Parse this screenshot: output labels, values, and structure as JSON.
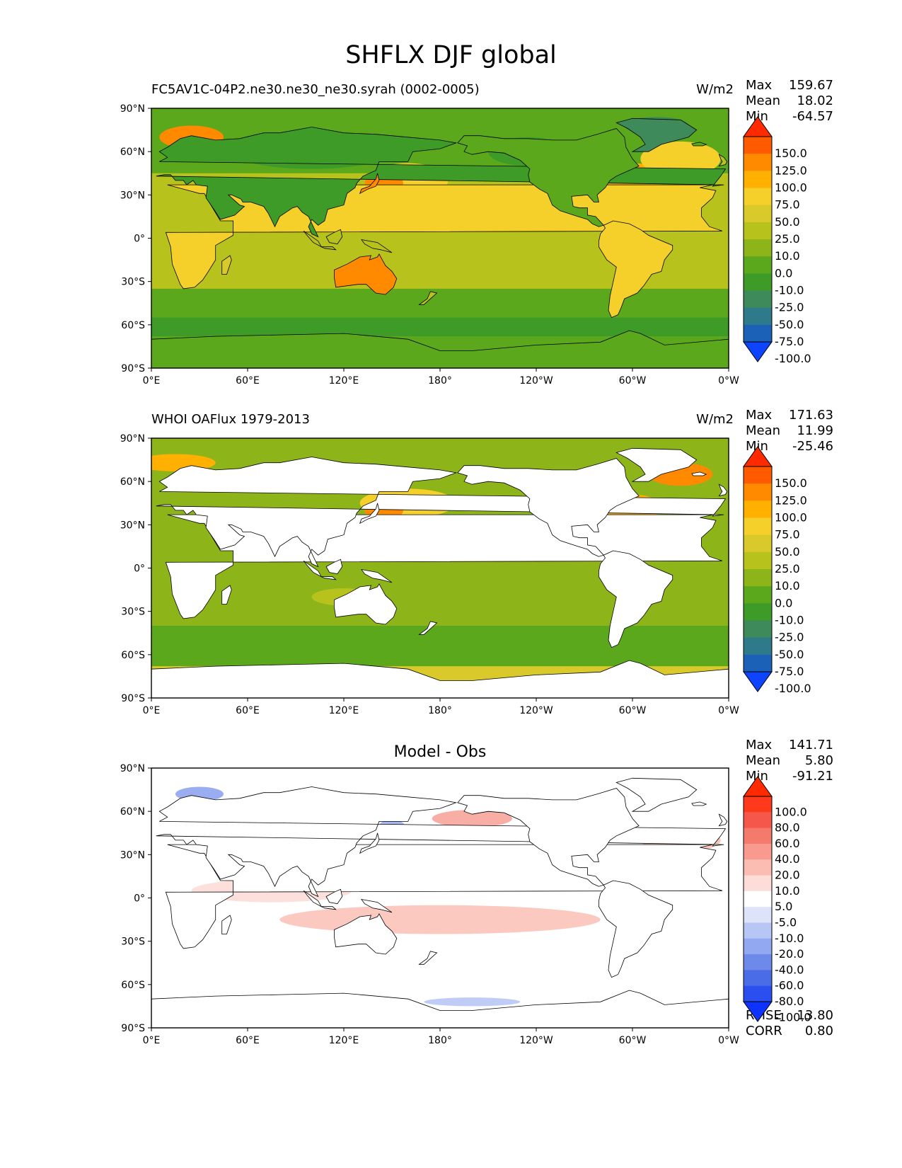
{
  "title": "SHFLX DJF global",
  "panels": [
    {
      "header_left": "FC5AV1C-04P2.ne30.ne30_ne30.syrah (0002-0005)",
      "header_center": "",
      "units": "W/m2",
      "stats": [
        {
          "label": "Max",
          "value": "159.67"
        },
        {
          "label": "Mean",
          "value": "18.02"
        },
        {
          "label": "Min",
          "value": "-64.57"
        }
      ],
      "colorbar": {
        "levels": [
          "150.0",
          "125.0",
          "100.0",
          "75.0",
          "50.0",
          "25.0",
          "10.0",
          "0.0",
          "-10.0",
          "-25.0",
          "-50.0",
          "-75.0",
          "-100.0"
        ],
        "colors": [
          "#ff2a00",
          "#ff5a00",
          "#ff8a00",
          "#ffb000",
          "#f5cf2a",
          "#d9c92a",
          "#b8c21c",
          "#8db51a",
          "#5ca81c",
          "#3f9b28",
          "#3e8a5a",
          "#2f7a8a",
          "#1c61b8",
          "#0f44ff"
        ]
      },
      "show_land_mask": false,
      "map_fill": "#b8c21c"
    },
    {
      "header_left": "WHOI OAFlux 1979-2013",
      "header_center": "",
      "units": "W/m2",
      "stats": [
        {
          "label": "Max",
          "value": "171.63"
        },
        {
          "label": "Mean",
          "value": "11.99"
        },
        {
          "label": "Min",
          "value": "-25.46"
        }
      ],
      "colorbar": {
        "levels": [
          "150.0",
          "125.0",
          "100.0",
          "75.0",
          "50.0",
          "25.0",
          "10.0",
          "0.0",
          "-10.0",
          "-25.0",
          "-50.0",
          "-75.0",
          "-100.0"
        ],
        "colors": [
          "#ff2a00",
          "#ff5a00",
          "#ff8a00",
          "#ffb000",
          "#f5cf2a",
          "#d9c92a",
          "#b8c21c",
          "#8db51a",
          "#5ca81c",
          "#3f9b28",
          "#3e8a5a",
          "#2f7a8a",
          "#1c61b8",
          "#0f44ff"
        ]
      },
      "show_land_mask": true,
      "map_fill": "#8db51a"
    },
    {
      "header_left": "",
      "header_center": "Model - Obs",
      "units": "",
      "stats": [
        {
          "label": "Max",
          "value": "141.71"
        },
        {
          "label": "Mean",
          "value": "5.80"
        },
        {
          "label": "Min",
          "value": "-91.21"
        }
      ],
      "extra_stats": [
        {
          "label": "RMSE",
          "value": "13.80"
        },
        {
          "label": "CORR",
          "value": "0.80"
        }
      ],
      "colorbar": {
        "levels": [
          "100.0",
          "80.0",
          "60.0",
          "40.0",
          "20.0",
          "10.0",
          "5.0",
          "-5.0",
          "-10.0",
          "-20.0",
          "-40.0",
          "-60.0",
          "-80.0",
          "-100.0"
        ],
        "colors": [
          "#ff2a00",
          "#ff3a1c",
          "#f5584a",
          "#f57a6e",
          "#f89a8e",
          "#fbbcb2",
          "#fdddd8",
          "#ffffff",
          "#dde4fa",
          "#b8c6f5",
          "#92a8f0",
          "#6d8aea",
          "#4a6ce6",
          "#2a4ef0",
          "#0f33ff"
        ]
      },
      "show_land_mask": true,
      "map_fill": "#ffffff"
    }
  ],
  "axes": {
    "x_ticks": [
      "0°E",
      "60°E",
      "120°E",
      "180°",
      "120°W",
      "60°W",
      "0°W"
    ],
    "y_ticks": [
      "90°N",
      "60°N",
      "30°N",
      "0°",
      "30°S",
      "60°S",
      "90°S"
    ]
  },
  "chart_data": [
    {
      "type": "heatmap",
      "title": "FC5AV1C-04P2.ne30.ne30_ne30.syrah (0002-0005)",
      "units": "W/m2",
      "xlim": [
        0,
        360
      ],
      "ylim": [
        -90,
        90
      ],
      "max": 159.67,
      "mean": 18.02,
      "min": -64.57,
      "levels": [
        150,
        125,
        100,
        75,
        50,
        25,
        10,
        0,
        -10,
        -25,
        -50,
        -75,
        -100
      ]
    },
    {
      "type": "heatmap",
      "title": "WHOI OAFlux 1979-2013",
      "units": "W/m2",
      "xlim": [
        0,
        360
      ],
      "ylim": [
        -90,
        90
      ],
      "max": 171.63,
      "mean": 11.99,
      "min": -25.46,
      "levels": [
        150,
        125,
        100,
        75,
        50,
        25,
        10,
        0,
        -10,
        -25,
        -50,
        -75,
        -100
      ]
    },
    {
      "type": "heatmap",
      "title": "Model - Obs",
      "xlim": [
        0,
        360
      ],
      "ylim": [
        -90,
        90
      ],
      "max": 141.71,
      "mean": 5.8,
      "min": -91.21,
      "rmse": 13.8,
      "corr": 0.8,
      "levels": [
        100,
        80,
        60,
        40,
        20,
        10,
        5,
        -5,
        -10,
        -20,
        -40,
        -60,
        -80,
        -100
      ]
    }
  ]
}
